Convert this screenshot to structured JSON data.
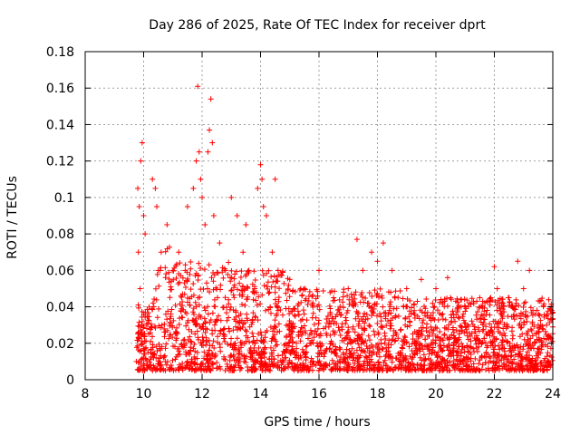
{
  "chart_data": {
    "type": "scatter",
    "title": "Day 286 of 2025, Rate Of TEC Index for receiver dprt",
    "xlabel": "GPS time / hours",
    "ylabel": "ROTI / TECUs",
    "xlim": [
      8,
      24
    ],
    "ylim": [
      0,
      0.18
    ],
    "xticks": [
      8,
      10,
      12,
      14,
      16,
      18,
      20,
      22,
      24
    ],
    "xtick_labels": [
      "8",
      "10",
      "12",
      "14",
      "16",
      "18",
      "20",
      "22",
      "24"
    ],
    "yticks": [
      0,
      0.02,
      0.04,
      0.06,
      0.08,
      0.1,
      0.12,
      0.14,
      0.16,
      0.18
    ],
    "ytick_labels": [
      "0",
      "0.02",
      "0.04",
      "0.06",
      "0.08",
      "0.1",
      "0.12",
      "0.14",
      "0.16",
      "0.18"
    ],
    "grid": true,
    "marker": "plus",
    "color": "#ff0000",
    "data_x_range": [
      9.75,
      24
    ],
    "series": [
      {
        "x": [
          9.75,
          9.8,
          9.85,
          9.9,
          9.95,
          10.0,
          9.82,
          9.88,
          9.93,
          10.05,
          10.3,
          10.4,
          10.45,
          10.5,
          10.35,
          10.6,
          10.8,
          11.0,
          11.2,
          11.5,
          11.7,
          11.8,
          11.85,
          11.9,
          11.95,
          12.0,
          12.1,
          12.2,
          12.25,
          12.3,
          12.35,
          12.4,
          12.6,
          12.8,
          13.0,
          13.2,
          13.4,
          13.5,
          13.6,
          13.8,
          13.9,
          14.0,
          14.05,
          14.1,
          14.2,
          14.4,
          14.5,
          14.6,
          15.0,
          15.5,
          16.0,
          16.5,
          17.0,
          17.3,
          17.5,
          17.8,
          18.0,
          18.2,
          18.5,
          19.0,
          19.5,
          20.0,
          20.4,
          20.5,
          21.0,
          21.5,
          22.0,
          22.1,
          22.5,
          22.8,
          23.0,
          23.2,
          23.5,
          24.0
        ],
        "y": [
          0.01,
          0.105,
          0.095,
          0.12,
          0.13,
          0.09,
          0.07,
          0.05,
          0.03,
          0.08,
          0.11,
          0.105,
          0.095,
          0.06,
          0.04,
          0.07,
          0.085,
          0.06,
          0.07,
          0.095,
          0.105,
          0.12,
          0.161,
          0.125,
          0.11,
          0.1,
          0.085,
          0.125,
          0.137,
          0.154,
          0.13,
          0.09,
          0.075,
          0.06,
          0.1,
          0.09,
          0.07,
          0.085,
          0.06,
          0.05,
          0.105,
          0.118,
          0.11,
          0.095,
          0.09,
          0.07,
          0.11,
          0.06,
          0.055,
          0.05,
          0.06,
          0.045,
          0.05,
          0.077,
          0.06,
          0.07,
          0.065,
          0.075,
          0.06,
          0.05,
          0.055,
          0.05,
          0.056,
          0.045,
          0.04,
          0.045,
          0.062,
          0.05,
          0.045,
          0.065,
          0.05,
          0.06,
          0.03,
          0.037
        ]
      }
    ]
  }
}
